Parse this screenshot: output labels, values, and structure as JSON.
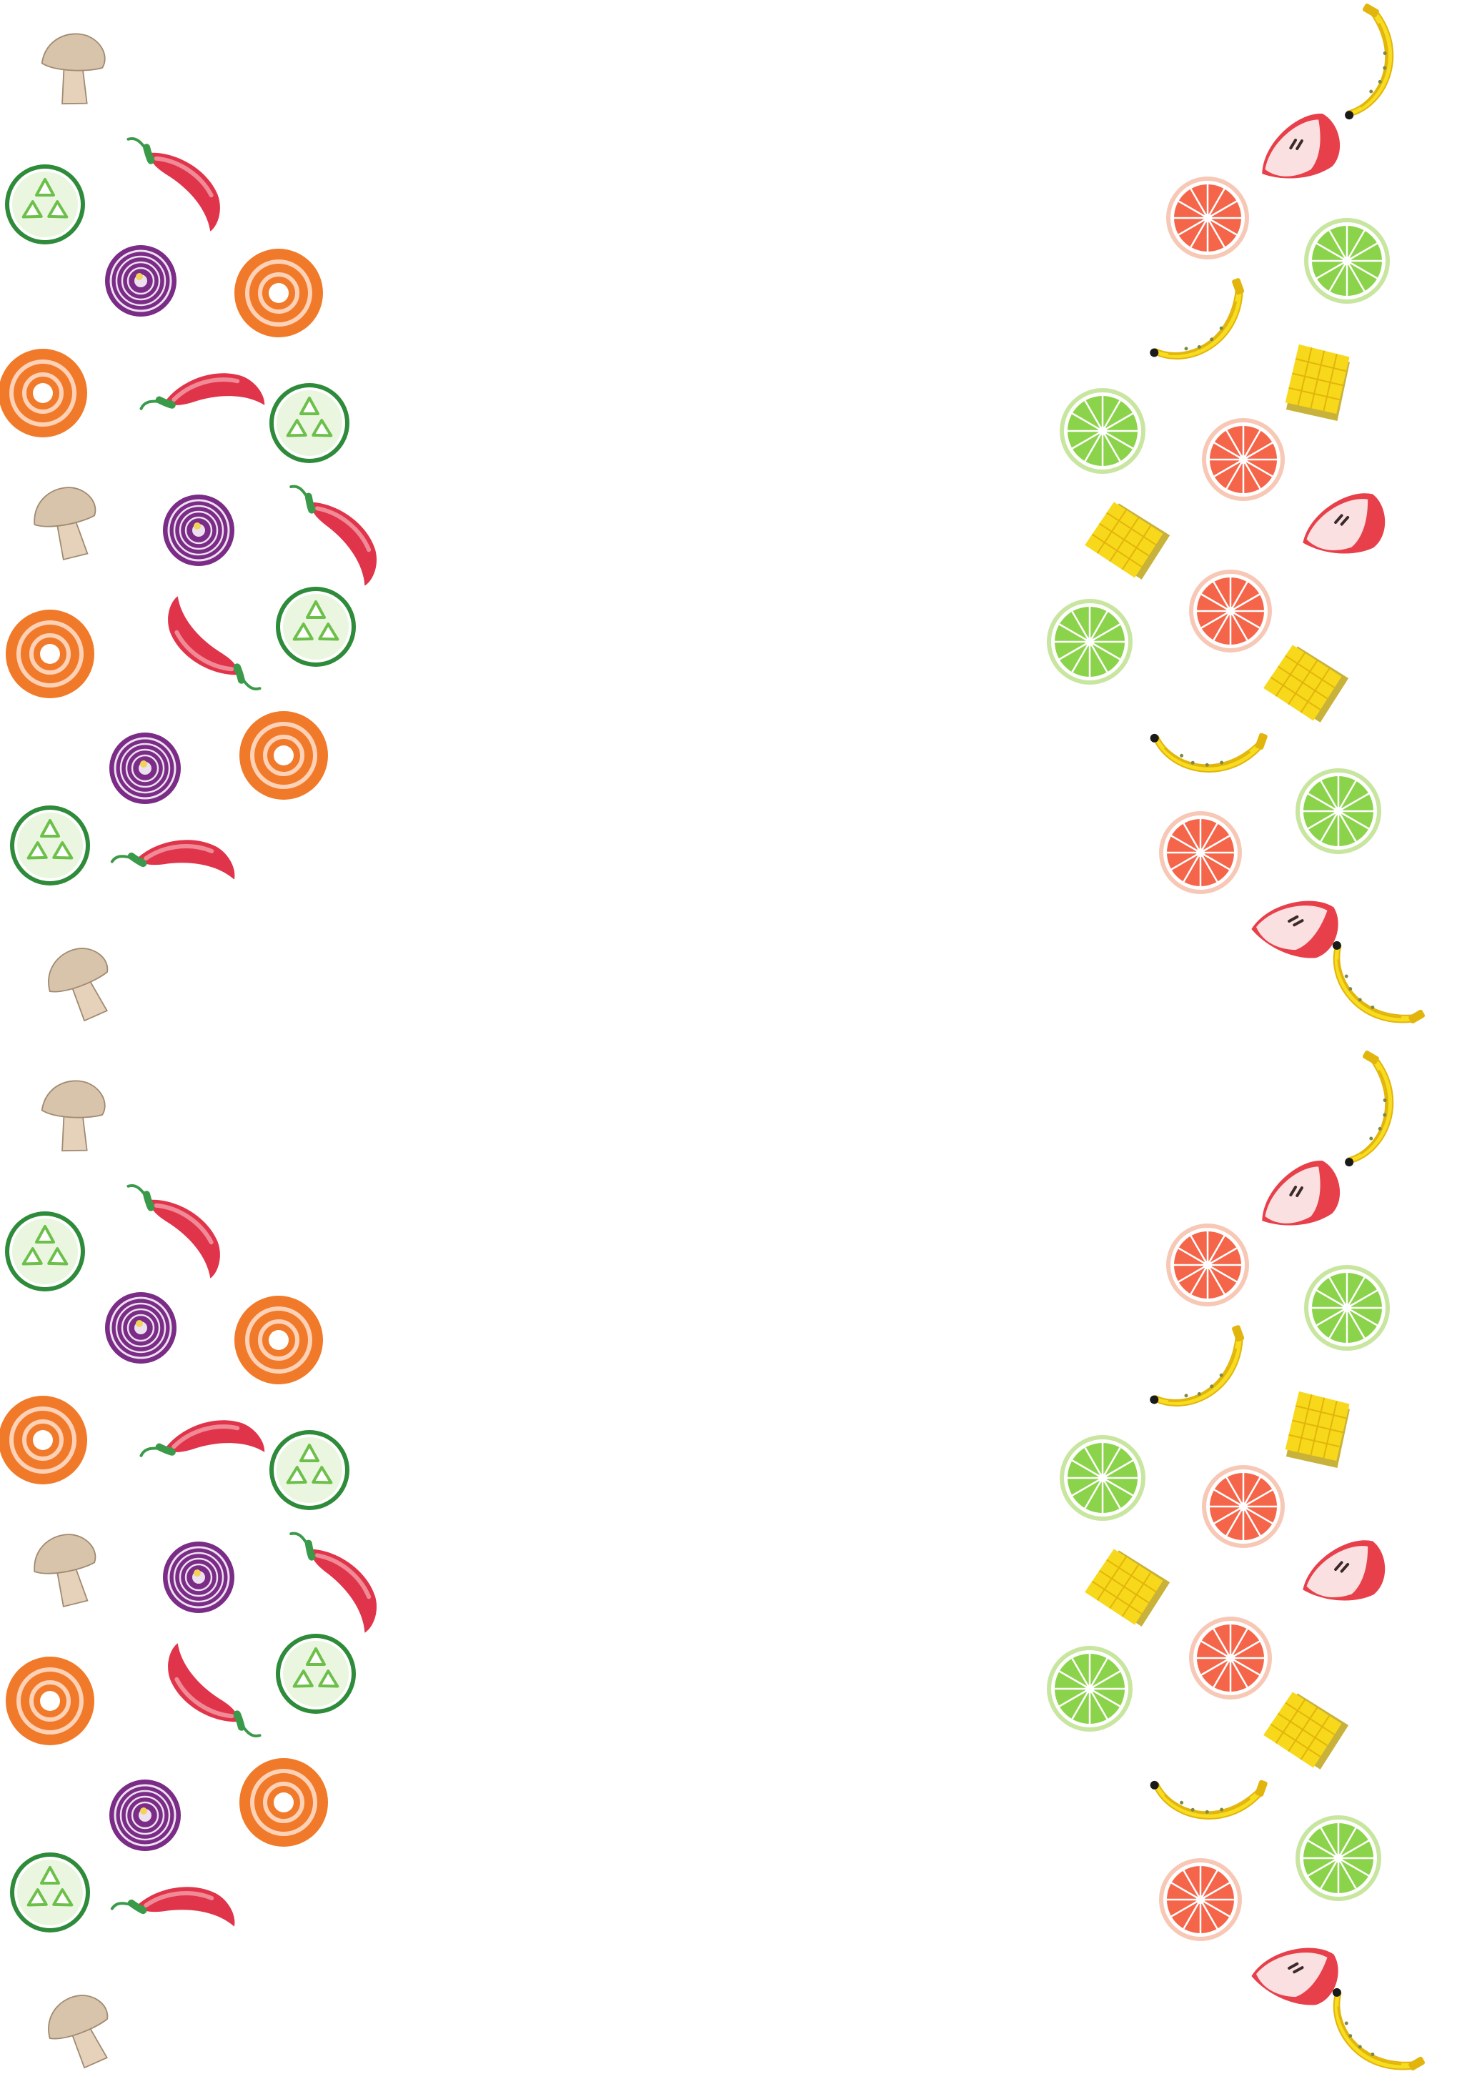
{
  "page": {
    "background": "#ffffff"
  },
  "palette": {
    "mushroom_cap": "#d8c3ab",
    "mushroom_stem": "#e6d2bb",
    "mushroom_outline": "#a08a70",
    "cucumber_skin": "#2e8b3a",
    "cucumber_flesh": "#eaf6e0",
    "cucumber_seed": "#6cc04a",
    "chili_red": "#e0344a",
    "chili_light": "#f08a96",
    "chili_stem": "#3a9a4a",
    "onion_outer": "#7a2c86",
    "onion_inner": "#ede0f0",
    "onion_core": "#f2d35a",
    "carrot_outer": "#f07a2a",
    "carrot_ring": "#ffd2b8",
    "carrot_core": "#ffffff",
    "banana_yellow": "#f7dc1f",
    "banana_shadow": "#e2b50c",
    "banana_tip": "#1a1a1a",
    "apple_red": "#e8404a",
    "apple_flesh": "#fbe0e2",
    "grapefruit_rind": "#f8c8b6",
    "grapefruit_pulp": "#f4654a",
    "lime_rind": "#c8e6a0",
    "lime_pulp": "#8bd34a",
    "mango_yellow": "#f8d81a",
    "mango_skin": "#c8b23a"
  },
  "pattern": {
    "repeat_count": 2,
    "vegetables": [
      {
        "icon": "mushroom-icon"
      },
      {
        "icon": "cucumber-slice-icon"
      },
      {
        "icon": "chili-pepper-icon"
      },
      {
        "icon": "red-onion-slice-icon"
      },
      {
        "icon": "carrot-slice-icon"
      },
      {
        "icon": "carrot-slice-icon"
      },
      {
        "icon": "chili-pepper-icon"
      },
      {
        "icon": "cucumber-slice-icon"
      },
      {
        "icon": "mushroom-icon"
      },
      {
        "icon": "red-onion-slice-icon"
      },
      {
        "icon": "chili-pepper-icon"
      },
      {
        "icon": "carrot-slice-icon"
      },
      {
        "icon": "chili-pepper-icon"
      },
      {
        "icon": "cucumber-slice-icon"
      },
      {
        "icon": "red-onion-slice-icon"
      },
      {
        "icon": "carrot-slice-icon"
      },
      {
        "icon": "cucumber-slice-icon"
      },
      {
        "icon": "chili-pepper-icon"
      },
      {
        "icon": "mushroom-icon"
      }
    ],
    "fruits": [
      {
        "icon": "banana-icon"
      },
      {
        "icon": "apple-slice-icon"
      },
      {
        "icon": "grapefruit-slice-icon"
      },
      {
        "icon": "lime-slice-icon"
      },
      {
        "icon": "banana-icon"
      },
      {
        "icon": "mango-cube-icon"
      },
      {
        "icon": "lime-slice-icon"
      },
      {
        "icon": "grapefruit-slice-icon"
      },
      {
        "icon": "apple-slice-icon"
      },
      {
        "icon": "mango-cube-icon"
      },
      {
        "icon": "grapefruit-slice-icon"
      },
      {
        "icon": "lime-slice-icon"
      },
      {
        "icon": "mango-cube-icon"
      },
      {
        "icon": "banana-icon"
      },
      {
        "icon": "lime-slice-icon"
      },
      {
        "icon": "grapefruit-slice-icon"
      },
      {
        "icon": "apple-slice-icon"
      },
      {
        "icon": "banana-icon"
      }
    ]
  }
}
